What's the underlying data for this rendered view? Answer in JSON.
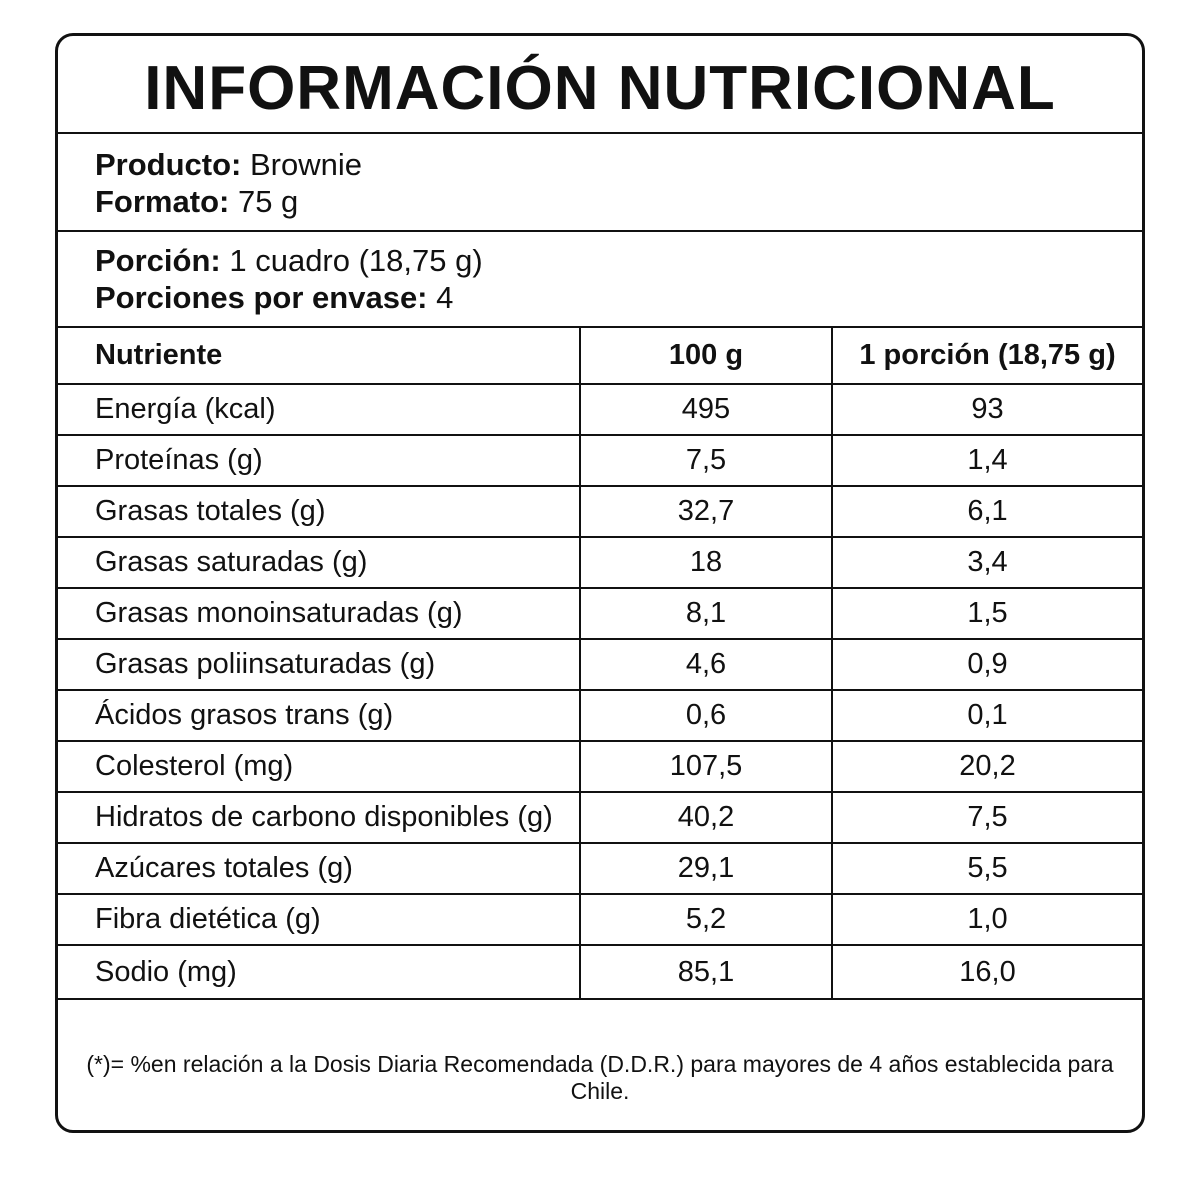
{
  "title": "INFORMACIÓN NUTRICIONAL",
  "product": {
    "label": "Producto:",
    "value": "Brownie"
  },
  "format": {
    "label": "Formato:",
    "value": "75 g"
  },
  "portion": {
    "label": "Porción:",
    "value": "1 cuadro (18,75 g)"
  },
  "portions_per_pack": {
    "label": "Porciones por envase:",
    "value": "4"
  },
  "table": {
    "headers": [
      "Nutriente",
      "100 g",
      "1 porción (18,75 g)"
    ],
    "rows": [
      [
        "Energía (kcal)",
        "495",
        "93"
      ],
      [
        "Proteínas (g)",
        "7,5",
        "1,4"
      ],
      [
        "Grasas totales (g)",
        "32,7",
        "6,1"
      ],
      [
        "Grasas saturadas (g)",
        "18",
        "3,4"
      ],
      [
        "Grasas monoinsaturadas (g)",
        "8,1",
        "1,5"
      ],
      [
        "Grasas poliinsaturadas (g)",
        "4,6",
        "0,9"
      ],
      [
        "Ácidos grasos trans (g)",
        "0,6",
        "0,1"
      ],
      [
        "Colesterol (mg)",
        "107,5",
        "20,2"
      ],
      [
        "Hidratos de carbono disponibles (g)",
        "40,2",
        "7,5"
      ],
      [
        "Azúcares totales (g)",
        "29,1",
        "5,5"
      ],
      [
        "Fibra dietética (g)",
        "5,2",
        "1,0"
      ],
      [
        "Sodio (mg)",
        "85,1",
        "16,0"
      ]
    ]
  },
  "footnote": "(*)= %en relación a la Dosis Diaria Recomendada (D.D.R.) para mayores de 4 años establecida para Chile."
}
